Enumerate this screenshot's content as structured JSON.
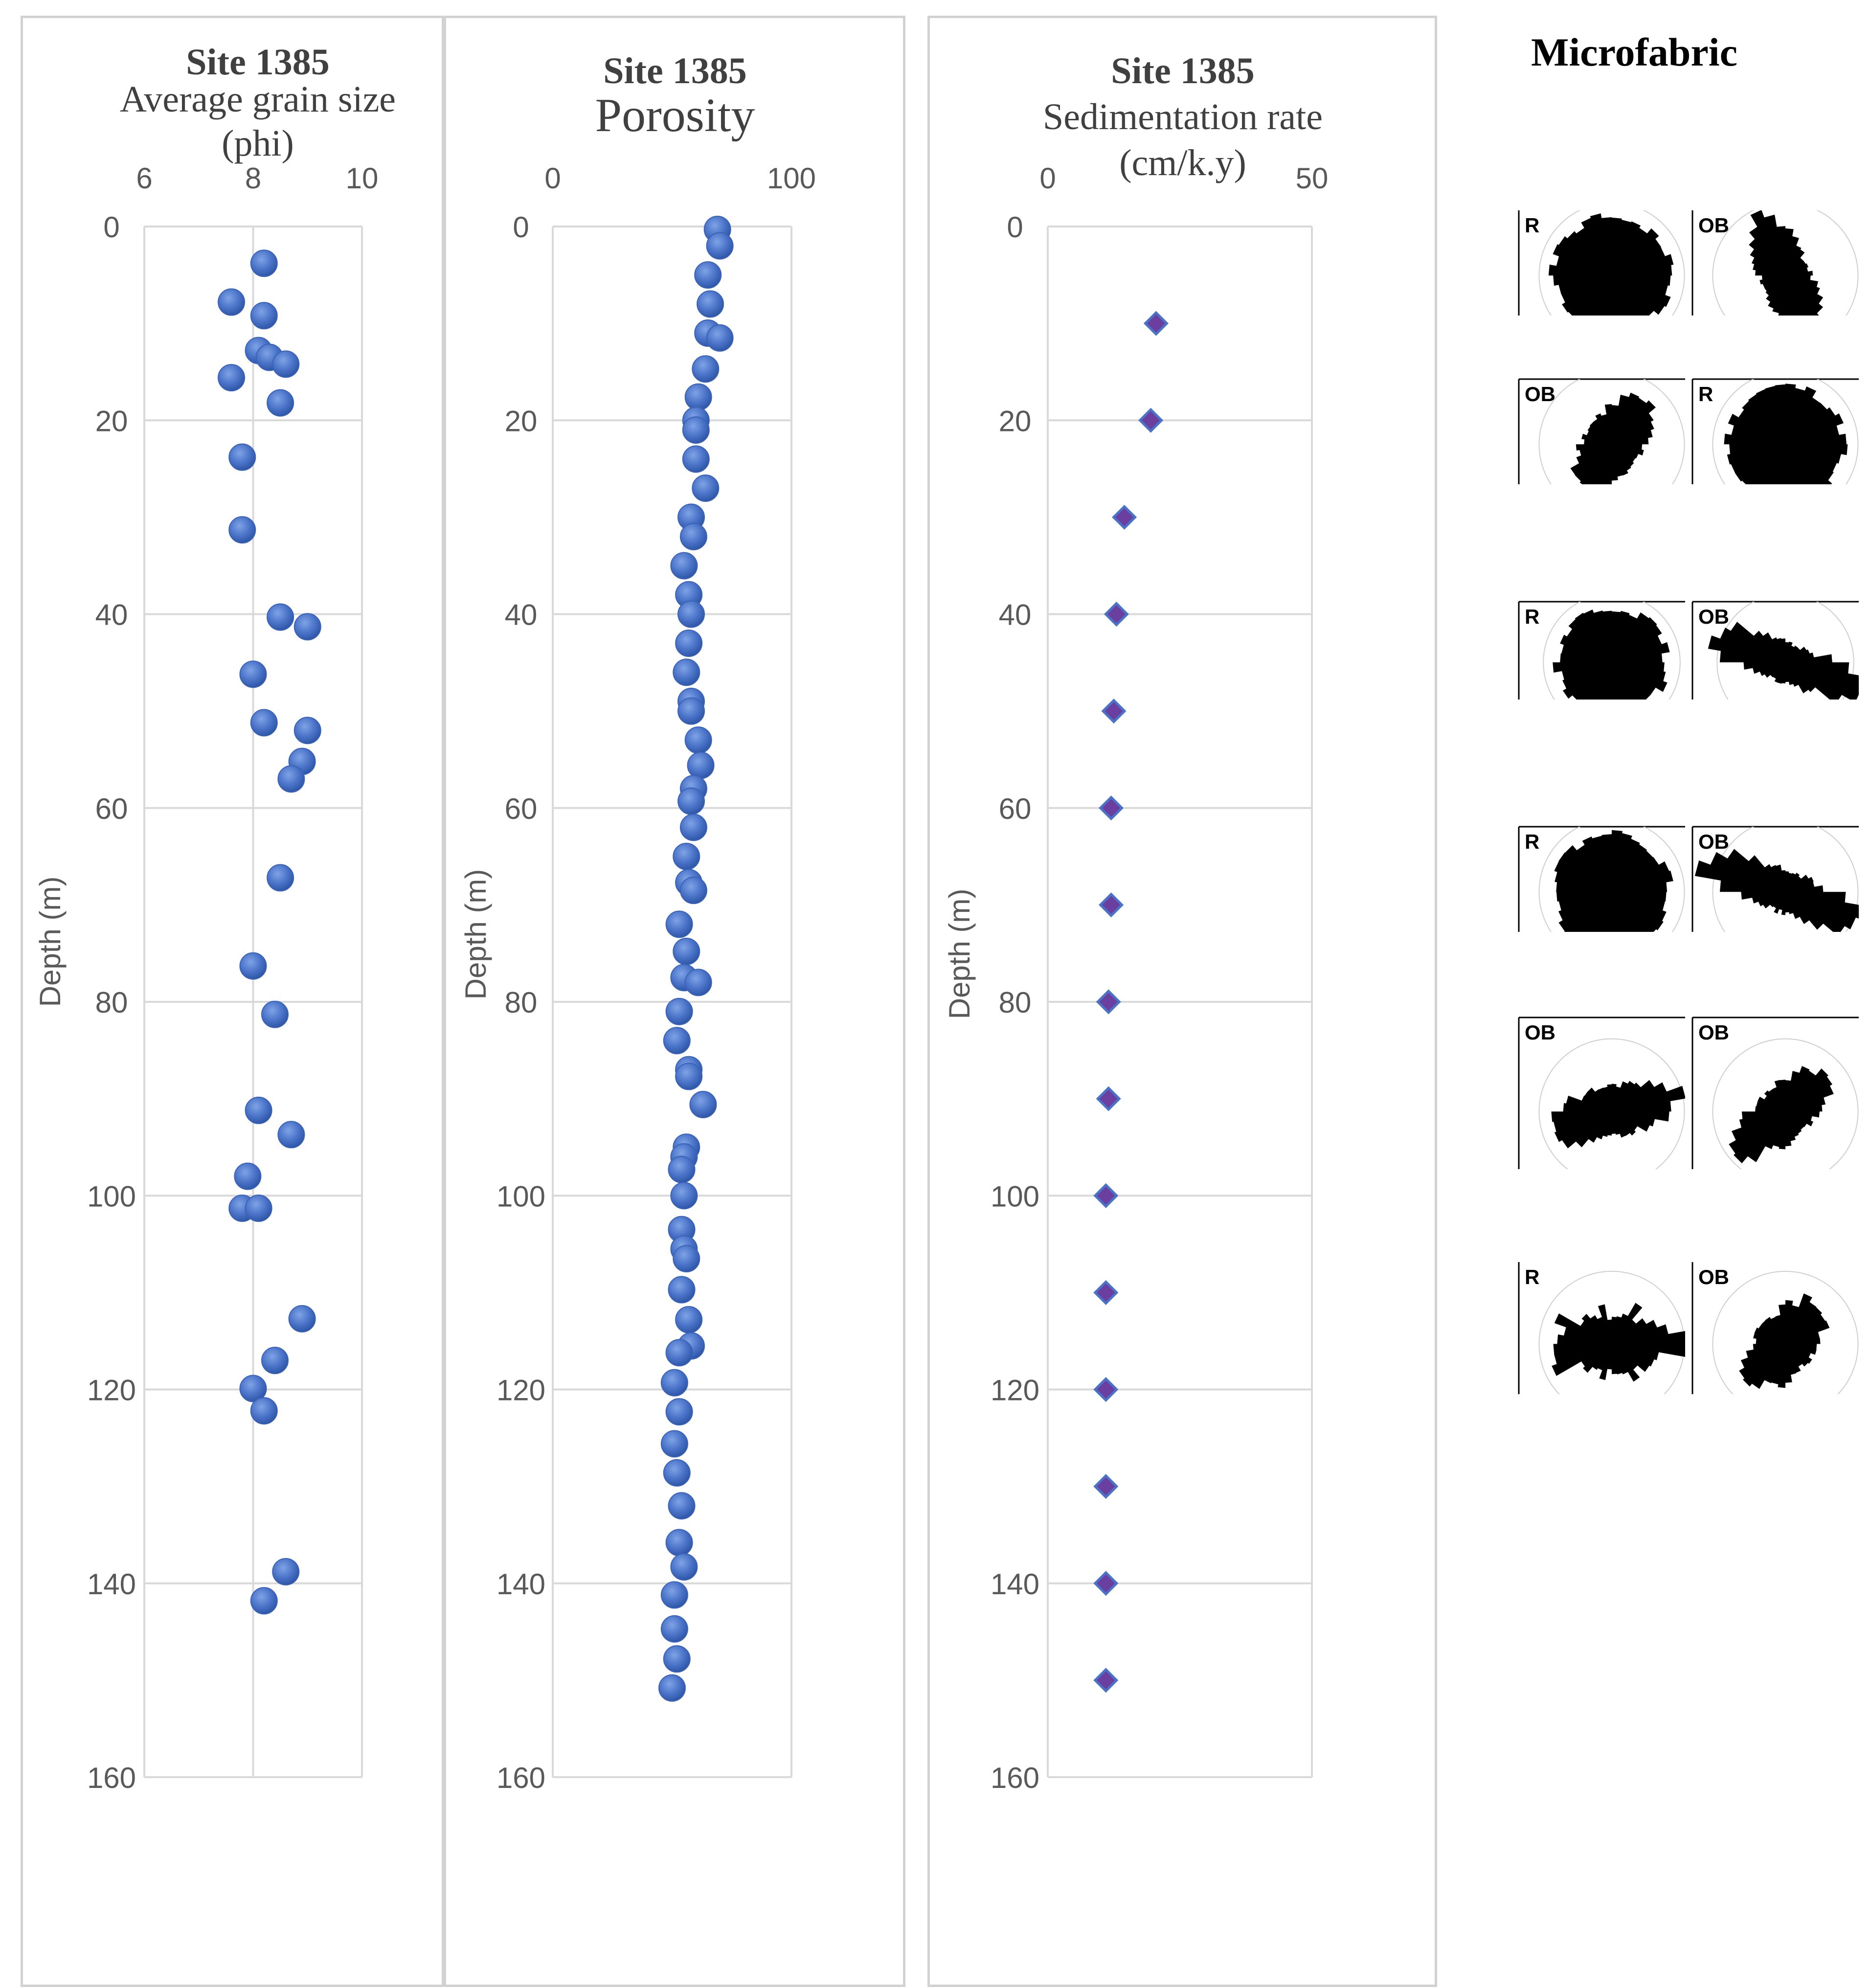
{
  "microfabric": {
    "title": "Microfabric",
    "rows": [
      [
        "R",
        "OB"
      ],
      [
        "OB",
        "R"
      ],
      [
        "R",
        "OB"
      ],
      [
        "R",
        "OB"
      ],
      [
        "OB",
        "OB"
      ],
      [
        "R",
        "OB"
      ]
    ]
  },
  "chart_data": [
    {
      "type": "scatter",
      "site": "Site 1385",
      "title": "Average grain size",
      "unit": "(phi)",
      "ylabel": "Depth (m)",
      "xlim": [
        6,
        10
      ],
      "xticks": [
        6,
        8,
        10
      ],
      "ylim": [
        0,
        160
      ],
      "yticks": [
        0,
        20,
        40,
        60,
        80,
        100,
        120,
        140,
        160
      ],
      "ylabel_shown": true,
      "marker": "circle",
      "color": "#4a73c8",
      "points": [
        [
          8.2,
          3.8
        ],
        [
          7.6,
          7.8
        ],
        [
          8.2,
          9.2
        ],
        [
          8.1,
          12.8
        ],
        [
          8.3,
          13.5
        ],
        [
          8.6,
          14.2
        ],
        [
          7.6,
          15.6
        ],
        [
          8.5,
          18.2
        ],
        [
          7.8,
          23.8
        ],
        [
          7.8,
          31.3
        ],
        [
          8.5,
          40.3
        ],
        [
          9.0,
          41.3
        ],
        [
          8.0,
          46.2
        ],
        [
          8.2,
          51.2
        ],
        [
          9.0,
          52.0
        ],
        [
          8.9,
          55.2
        ],
        [
          8.7,
          57.0
        ],
        [
          8.5,
          67.2
        ],
        [
          8.0,
          76.3
        ],
        [
          8.4,
          81.3
        ],
        [
          8.1,
          91.2
        ],
        [
          8.7,
          93.7
        ],
        [
          7.9,
          98.0
        ],
        [
          7.8,
          101.3
        ],
        [
          8.1,
          101.3
        ],
        [
          8.9,
          112.7
        ],
        [
          8.4,
          117.0
        ],
        [
          8.0,
          119.9
        ],
        [
          8.2,
          122.2
        ],
        [
          8.6,
          138.8
        ],
        [
          8.2,
          141.8
        ]
      ]
    },
    {
      "type": "scatter",
      "site": "Site 1385",
      "title": "Porosity",
      "unit": "",
      "ylabel": "Depth (m)",
      "xlim": [
        0,
        100
      ],
      "xticks": [
        0,
        100
      ],
      "ylim": [
        0,
        160
      ],
      "yticks": [
        0,
        20,
        40,
        60,
        80,
        100,
        120,
        140,
        160
      ],
      "ylabel_shown": true,
      "marker": "circle",
      "color": "#4a73c8",
      "points": [
        [
          69,
          0.3
        ],
        [
          70,
          2.0
        ],
        [
          65,
          5.0
        ],
        [
          66,
          8.0
        ],
        [
          65,
          11.0
        ],
        [
          70,
          11.5
        ],
        [
          64,
          14.7
        ],
        [
          61,
          17.6
        ],
        [
          60,
          20.0
        ],
        [
          60,
          21.0
        ],
        [
          60,
          24.0
        ],
        [
          64,
          27.0
        ],
        [
          58,
          30.0
        ],
        [
          59,
          32.0
        ],
        [
          55,
          35.0
        ],
        [
          57,
          38.0
        ],
        [
          58,
          40.0
        ],
        [
          57,
          43.0
        ],
        [
          56,
          46.0
        ],
        [
          58,
          49.0
        ],
        [
          58,
          50.0
        ],
        [
          61,
          53.0
        ],
        [
          62,
          55.6
        ],
        [
          59,
          58.0
        ],
        [
          58,
          59.3
        ],
        [
          59,
          62.0
        ],
        [
          56,
          65.0
        ],
        [
          57,
          67.7
        ],
        [
          59,
          68.5
        ],
        [
          53,
          72.0
        ],
        [
          56,
          74.8
        ],
        [
          55,
          77.5
        ],
        [
          61,
          78.0
        ],
        [
          53,
          81.0
        ],
        [
          52,
          84.0
        ],
        [
          57,
          87.0
        ],
        [
          57,
          87.7
        ],
        [
          63,
          90.6
        ],
        [
          56,
          95.0
        ],
        [
          55,
          96.0
        ],
        [
          54,
          97.3
        ],
        [
          55,
          100.0
        ],
        [
          54,
          103.5
        ],
        [
          55,
          105.5
        ],
        [
          56,
          106.5
        ],
        [
          54,
          109.7
        ],
        [
          57,
          112.8
        ],
        [
          58,
          115.5
        ],
        [
          53,
          116.2
        ],
        [
          51,
          119.3
        ],
        [
          53,
          122.3
        ],
        [
          51,
          125.6
        ],
        [
          52,
          128.6
        ],
        [
          54,
          132.0
        ],
        [
          53,
          135.8
        ],
        [
          55,
          138.3
        ],
        [
          51,
          141.2
        ],
        [
          51,
          144.7
        ],
        [
          52,
          147.8
        ],
        [
          50,
          150.8
        ]
      ]
    },
    {
      "type": "scatter",
      "site": "Site 1385",
      "title": "Sedimentation rate",
      "unit": "(cm/k.y)",
      "ylabel": "Depth (m)",
      "xlim": [
        0,
        50
      ],
      "xticks": [
        0,
        50
      ],
      "ylim": [
        0,
        160
      ],
      "yticks": [
        0,
        20,
        40,
        60,
        80,
        100,
        120,
        140,
        160
      ],
      "ylabel_shown": true,
      "marker": "diamond",
      "color": "#6a3fa0",
      "points": [
        [
          20.5,
          10
        ],
        [
          19.5,
          20
        ],
        [
          14.5,
          30
        ],
        [
          13,
          40
        ],
        [
          12.5,
          50
        ],
        [
          12,
          60
        ],
        [
          12,
          70
        ],
        [
          11.5,
          80
        ],
        [
          11.5,
          90
        ],
        [
          11,
          100
        ],
        [
          11,
          110
        ],
        [
          11,
          120
        ],
        [
          11,
          130
        ],
        [
          11,
          140
        ],
        [
          11,
          150
        ]
      ]
    }
  ]
}
